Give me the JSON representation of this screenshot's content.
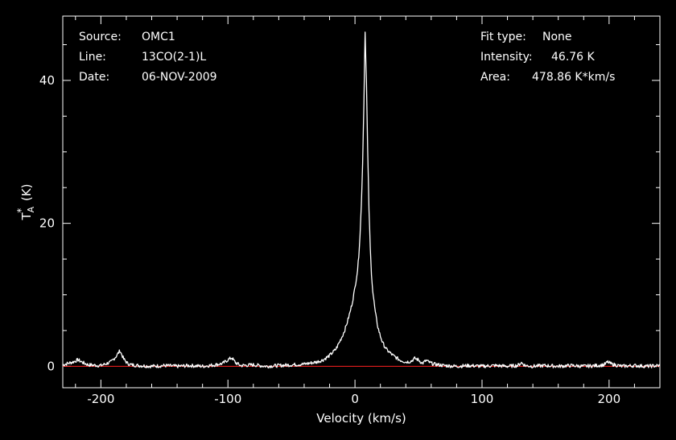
{
  "colors": {
    "background": "#000000",
    "foreground": "#ffffff",
    "baseline": "#ff2020"
  },
  "info": {
    "source_label": "Source:",
    "source_value": "OMC1",
    "line_label": "Line:",
    "line_value": "13CO(2-1)L",
    "date_label": "Date:",
    "date_value": "06-NOV-2009",
    "fit_label": "Fit type:",
    "fit_value": "None",
    "intensity_label": "Intensity:",
    "intensity_value": "46.76 K",
    "area_label": "Area:",
    "area_value": "478.86 K*km/s"
  },
  "chart_data": {
    "type": "line",
    "title": "",
    "xlabel": "Velocity (km/s)",
    "ylabel": "T*A (K)",
    "xlim": [
      -230,
      240
    ],
    "ylim": [
      -3,
      49
    ],
    "xticks": [
      -200,
      -100,
      0,
      100,
      200
    ],
    "yticks": [
      0,
      20,
      40
    ],
    "xtick_labels": [
      "-200",
      "-100",
      "0",
      "100",
      "200"
    ],
    "ytick_labels": [
      "0",
      "20",
      "40"
    ],
    "grid": false,
    "baseline_y": 0,
    "series": [
      {
        "x": [
          -230,
          -222,
          -218,
          -214,
          -210,
          -200,
          -192,
          -188,
          -185,
          -182,
          -179,
          -176,
          -170,
          -160,
          -150,
          -140,
          -130,
          -120,
          -110,
          -104,
          -100,
          -97,
          -94,
          -90,
          -80,
          -70,
          -60,
          -50,
          -40,
          -30,
          -25,
          -20,
          -15,
          -10,
          -8,
          -6,
          -4,
          -2,
          0,
          2,
          3,
          4,
          5,
          6,
          7,
          8,
          9,
          10,
          11,
          12,
          13,
          14,
          16,
          18,
          20,
          22,
          25,
          30,
          35,
          40,
          44,
          47,
          50,
          53,
          56,
          59,
          62,
          70,
          80,
          90,
          100,
          110,
          120,
          128,
          131,
          134,
          140,
          150,
          160,
          170,
          180,
          190,
          196,
          199,
          202,
          210,
          220,
          230,
          240
        ],
        "y": [
          0.2,
          0.6,
          0.9,
          0.5,
          0.2,
          0.1,
          0.6,
          1.4,
          2.2,
          1.0,
          0.4,
          0.2,
          0.1,
          0.0,
          0.1,
          0.0,
          0.1,
          0.0,
          0.2,
          0.4,
          0.9,
          1.2,
          0.5,
          0.1,
          0.2,
          0.0,
          0.1,
          0.2,
          0.3,
          0.6,
          0.9,
          1.5,
          2.4,
          4.2,
          5.1,
          6.2,
          7.5,
          9.0,
          11.0,
          13.5,
          15.5,
          18.5,
          22.5,
          28.5,
          37.0,
          46.76,
          40.0,
          30.0,
          22.0,
          16.5,
          13.0,
          10.5,
          7.5,
          5.5,
          4.2,
          3.2,
          2.3,
          1.5,
          0.9,
          0.6,
          0.7,
          1.1,
          0.9,
          0.4,
          0.8,
          0.5,
          0.3,
          0.1,
          0.0,
          0.1,
          0.0,
          0.1,
          0.0,
          0.1,
          0.5,
          0.1,
          0.0,
          0.1,
          0.0,
          0.1,
          0.0,
          0.1,
          0.2,
          0.6,
          0.3,
          0.0,
          0.1,
          0.0,
          0.1
        ]
      }
    ]
  }
}
